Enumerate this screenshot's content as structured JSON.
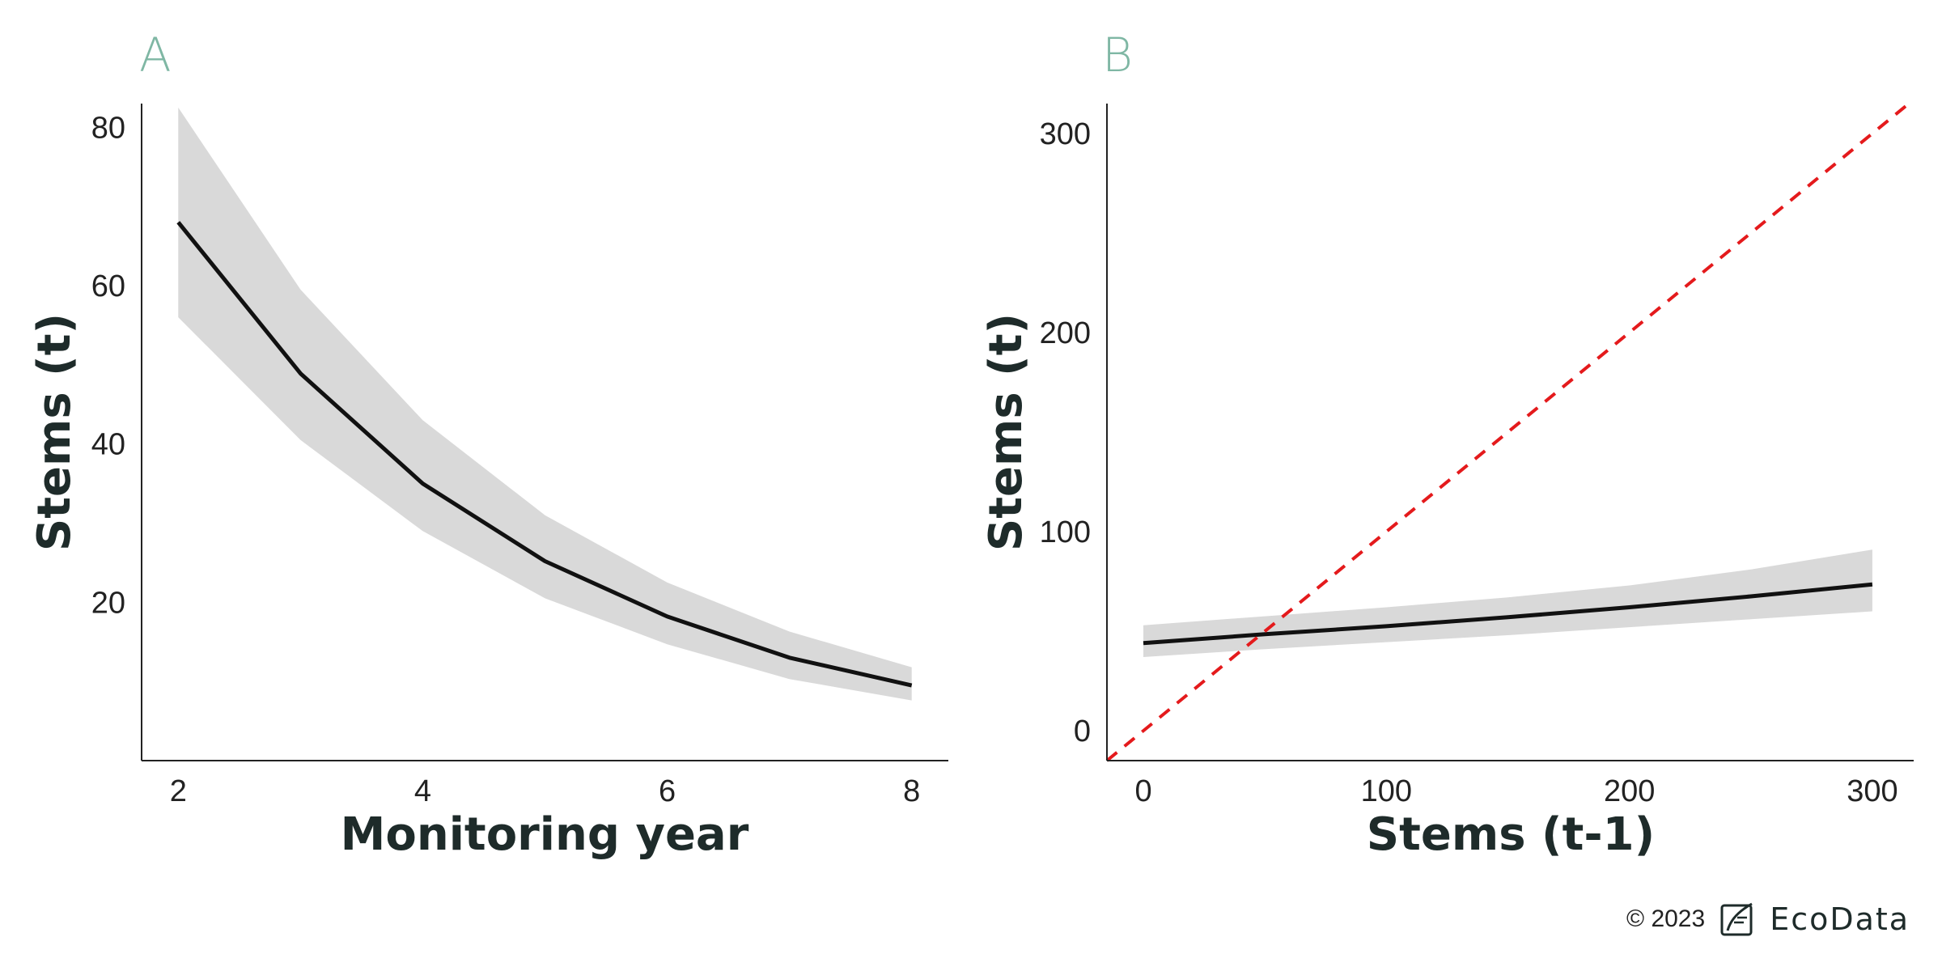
{
  "chart_data": [
    {
      "type": "line",
      "panel_label": "A",
      "xlabel": "Monitoring year",
      "ylabel": "Stems (t)",
      "xlim": [
        1.7,
        8.3
      ],
      "ylim": [
        0,
        83
      ],
      "xticks": [
        2,
        4,
        6,
        8
      ],
      "yticks": [
        20,
        40,
        60,
        80
      ],
      "grid": false,
      "band": {
        "x": [
          2,
          3,
          4,
          5,
          6,
          7,
          8
        ],
        "lower": [
          56,
          40.5,
          29,
          20.5,
          14.7,
          10.3,
          7.6
        ],
        "upper": [
          82.5,
          59.5,
          43,
          31,
          22.5,
          16.3,
          11.8
        ]
      },
      "series": [
        {
          "x": [
            2,
            3,
            4,
            5,
            6,
            7,
            8
          ],
          "values": [
            68,
            48.9,
            35,
            25.2,
            18.2,
            13,
            9.5
          ]
        }
      ]
    },
    {
      "type": "line",
      "panel_label": "B",
      "xlabel": "Stems (t-1)",
      "ylabel": "Stems (t)",
      "xlim": [
        -15,
        317
      ],
      "ylim": [
        -15,
        315
      ],
      "xticks": [
        0,
        100,
        200,
        300
      ],
      "yticks": [
        0,
        100,
        200,
        300
      ],
      "grid": false,
      "band": {
        "x": [
          0,
          50,
          100,
          150,
          200,
          250,
          300
        ],
        "lower": [
          37,
          41,
          44.5,
          48,
          52,
          56,
          60
        ],
        "upper": [
          53,
          57.5,
          62,
          67,
          73,
          81,
          91
        ]
      },
      "series": [
        {
          "x": [
            0,
            50,
            100,
            150,
            200,
            250,
            300
          ],
          "values": [
            44,
            48.5,
            52.5,
            57,
            62,
            67.5,
            73.5
          ]
        }
      ],
      "reference_line": {
        "slope": 1,
        "intercept": 0,
        "color": "#e41a1c",
        "style": "dashed"
      }
    }
  ],
  "credit": {
    "text": "© 2023",
    "brand": "EcoData",
    "logo_icon": "leaf-frame-icon"
  },
  "colors": {
    "panel_letter": "#7fb7a4",
    "band": "#d9d9d9",
    "line": "#111111",
    "reference": "#e41a1c"
  }
}
